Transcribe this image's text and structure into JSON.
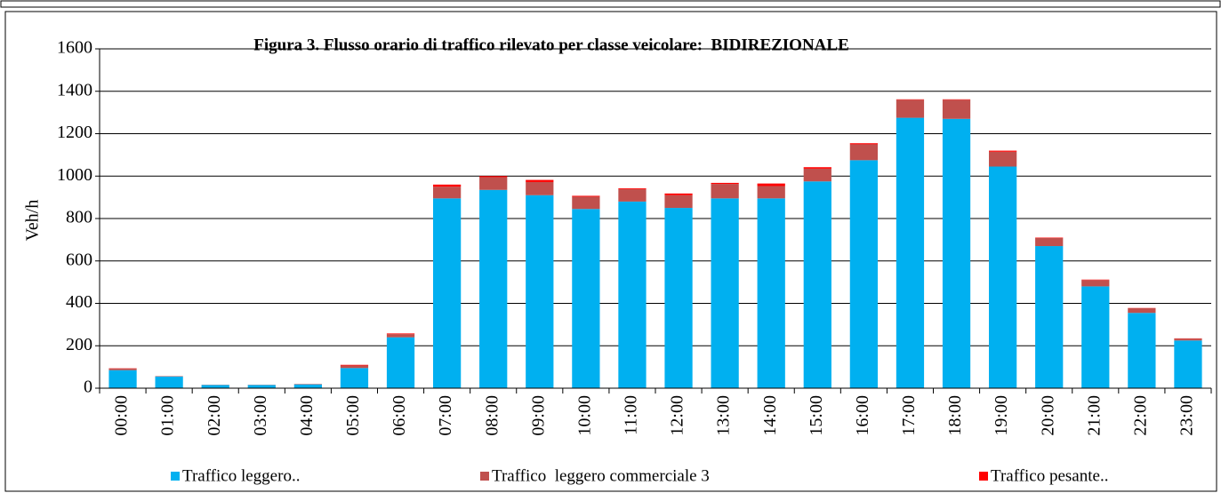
{
  "chart_data": {
    "type": "stacked_bar",
    "title": "Figura 3. Flusso orario di traffico rilevato per classe veicolare:  BIDIREZIONALE",
    "y_label": "Veh/h",
    "categories": [
      "00:00",
      "01:00",
      "02:00",
      "03:00",
      "04:00",
      "05:00",
      "06:00",
      "07:00",
      "08:00",
      "09:00",
      "10:00",
      "11:00",
      "12:00",
      "13:00",
      "14:00",
      "15:00",
      "16:00",
      "17:00",
      "18:00",
      "19:00",
      "20:00",
      "21:00",
      "22:00",
      "23:00"
    ],
    "series": [
      {
        "name": "Traffico leggero..",
        "color": "#00B0F0",
        "values": [
          85,
          55,
          15,
          15,
          18,
          95,
          240,
          895,
          935,
          910,
          845,
          880,
          850,
          895,
          895,
          975,
          1075,
          1275,
          1270,
          1045,
          670,
          480,
          355,
          225
        ]
      },
      {
        "name": "Traffico  leggero commerciale 3",
        "color": "#C0504D",
        "values": [
          8,
          2,
          1,
          1,
          2,
          12,
          15,
          55,
          60,
          62,
          58,
          58,
          60,
          68,
          58,
          60,
          75,
          85,
          90,
          70,
          38,
          30,
          22,
          9
        ]
      },
      {
        "name": "Traffico pesante..",
        "color": "#FF0000",
        "values": [
          1,
          0,
          0,
          0,
          0,
          3,
          3,
          10,
          5,
          10,
          4,
          4,
          8,
          5,
          12,
          7,
          5,
          2,
          2,
          5,
          2,
          2,
          1,
          1
        ]
      }
    ],
    "ylim": [
      0,
      1600
    ],
    "yticks": [
      0,
      200,
      400,
      600,
      800,
      1000,
      1200,
      1400,
      1600
    ],
    "grid": true
  }
}
